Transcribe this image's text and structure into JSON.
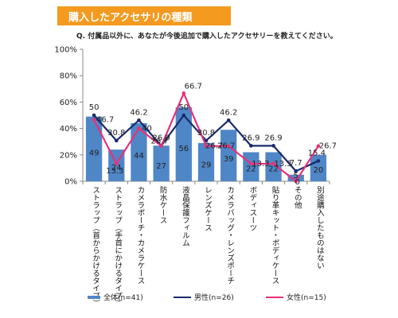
{
  "banner_title": "購入したアクセサリの種類",
  "question": "Q. 付属品以外に、あなたが今後追加で購入したアクセサリーを教えてください。",
  "colors": {
    "overall": "#4f86c6",
    "male": "#1a2a6c",
    "female": "#e8317a",
    "banner": "#f39a1f"
  },
  "chart_data": {
    "type": "bar",
    "categories": [
      "ストラップ（首からかけるタイプ）",
      "ストラップ（手首にかけるタイプ）",
      "カメラポーチ・カメラケース",
      "防水ケース",
      "液晶保護フィルム",
      "レンズケース",
      "カメラバッグ・レンズポーチ",
      "ボディスーツ",
      "貼り革キット・ボディケース",
      "その他",
      "別途購入したものはない"
    ],
    "series": [
      {
        "name": "全体(n=41)",
        "type": "bar",
        "values": [
          49,
          24,
          44,
          27,
          56,
          29,
          39,
          22,
          22,
          5,
          20
        ]
      },
      {
        "name": "男性(n=26)",
        "type": "line",
        "values": [
          50,
          30.8,
          46.2,
          26.9,
          50,
          30.8,
          46.2,
          26.9,
          26.9,
          7.7,
          15.4
        ]
      },
      {
        "name": "女性(n=15)",
        "type": "line",
        "values": [
          46.7,
          13.3,
          40,
          26.7,
          66.7,
          26.7,
          26.7,
          13.3,
          13.3,
          0,
          26.7
        ]
      }
    ],
    "value_labels": {
      "bars": [
        "49",
        "24",
        "44",
        "27",
        "56",
        "29",
        "39",
        "22",
        "22",
        "5",
        "20"
      ],
      "male": [
        "50",
        "30.8",
        "46.2",
        "26.9",
        "50",
        "30.8",
        "46.2",
        "26.9",
        "26.9",
        "7.7",
        "15.4"
      ],
      "female": [
        "46.7",
        "13.3",
        "40",
        "26.7",
        "66.7",
        "26.7",
        "26.7",
        "13.3",
        "13.3",
        "0",
        "26.7"
      ]
    },
    "yticks": [
      "0%",
      "20%",
      "40%",
      "60%",
      "80%",
      "100%"
    ],
    "ylim": [
      0,
      100
    ],
    "grid": false,
    "legend": "bottom"
  },
  "legend": {
    "overall": "全体(n=41)",
    "male": "男性(n=26)",
    "female": "女性(n=15)"
  }
}
